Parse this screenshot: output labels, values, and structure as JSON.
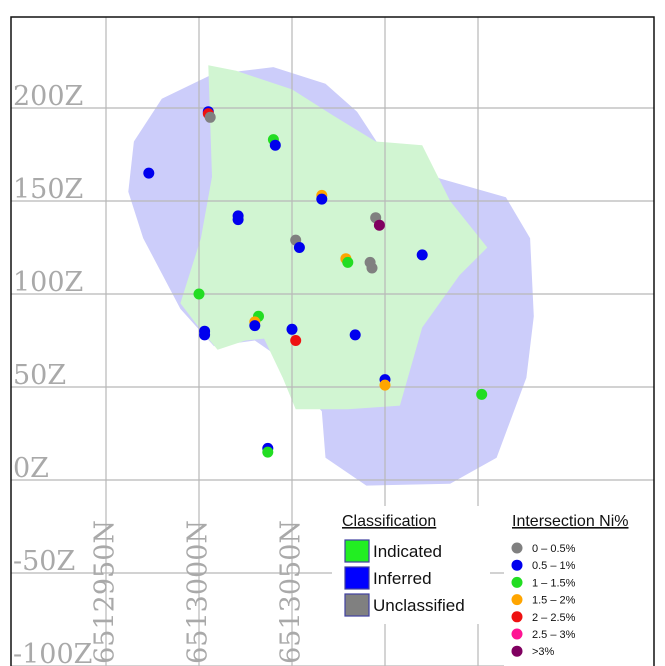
{
  "chart_data": {
    "type": "scatter",
    "title": "",
    "xlabel": "",
    "ylabel": "",
    "xlim": [
      6512920,
      6513185
    ],
    "ylim": [
      -105,
      245
    ],
    "y_ticks": [
      {
        "value": 200,
        "label": "200Z"
      },
      {
        "value": 150,
        "label": "150Z"
      },
      {
        "value": 100,
        "label": "100Z"
      },
      {
        "value": 50,
        "label": "50Z"
      },
      {
        "value": 0,
        "label": "0Z"
      },
      {
        "value": -50,
        "label": "-50Z"
      },
      {
        "value": -100,
        "label": "-100Z"
      }
    ],
    "x_ticks": [
      {
        "value": 6512950,
        "label": "6512950N"
      },
      {
        "value": 6513000,
        "label": "6513000N"
      },
      {
        "value": 6513050,
        "label": "6513050N"
      },
      {
        "value": 6513100,
        "label": ""
      },
      {
        "value": 6513150,
        "label": ""
      }
    ],
    "grid": true,
    "classification_legend": {
      "title": "Classification",
      "placement": "bottom-center",
      "items": [
        {
          "label": "Indicated",
          "color": "#22ee22"
        },
        {
          "label": "Inferred",
          "color": "#0000ff"
        },
        {
          "label": "Unclassified",
          "color": "#808080"
        }
      ]
    },
    "grade_legend": {
      "title": "Intersection Ni%",
      "placement": "bottom-right",
      "items": [
        {
          "label": "0 – 0.5%",
          "color": "#808080"
        },
        {
          "label": "0.5 – 1%",
          "color": "#0000ee"
        },
        {
          "label": "1 – 1.5%",
          "color": "#22dd22"
        },
        {
          "label": "1.5 – 2%",
          "color": "#ffa500"
        },
        {
          "label": "2 – 2.5%",
          "color": "#ee1111"
        },
        {
          "label": "2.5 – 3%",
          "color": "#ff1493"
        },
        {
          "label": ">3%",
          "color": "#800060"
        }
      ]
    },
    "regions": [
      {
        "name": "Inferred",
        "color": "#cccdfa",
        "points": [
          [
            6513068,
            213
          ],
          [
            6513040,
            222
          ],
          [
            6513007,
            218
          ],
          [
            6512980,
            205
          ],
          [
            6512965,
            182
          ],
          [
            6512962,
            155
          ],
          [
            6512970,
            130
          ],
          [
            6512990,
            92
          ],
          [
            6513008,
            72
          ],
          [
            6513030,
            75
          ],
          [
            6513043,
            66
          ],
          [
            6513050,
            55
          ],
          [
            6513066,
            37
          ],
          [
            6513068,
            12
          ],
          [
            6513090,
            -3
          ],
          [
            6513135,
            -2
          ],
          [
            6513160,
            12
          ],
          [
            6513176,
            55
          ],
          [
            6513180,
            88
          ],
          [
            6513178,
            130
          ],
          [
            6513165,
            152
          ],
          [
            6513130,
            162
          ],
          [
            6513102,
            172
          ],
          [
            6513085,
            198
          ]
        ]
      },
      {
        "name": "Indicated",
        "color": "#d1f5d2",
        "points": [
          [
            6513005,
            223
          ],
          [
            6513020,
            220
          ],
          [
            6513050,
            210
          ],
          [
            6513072,
            196
          ],
          [
            6513095,
            182
          ],
          [
            6513120,
            180
          ],
          [
            6513135,
            150
          ],
          [
            6513155,
            125
          ],
          [
            6513140,
            110
          ],
          [
            6513120,
            82
          ],
          [
            6513108,
            40
          ],
          [
            6513080,
            38
          ],
          [
            6513052,
            38
          ],
          [
            6513045,
            55
          ],
          [
            6513035,
            76
          ],
          [
            6513025,
            75
          ],
          [
            6513010,
            70
          ],
          [
            6513000,
            82
          ],
          [
            6512990,
            95
          ],
          [
            6513001,
            130
          ],
          [
            6513007,
            163
          ]
        ]
      },
      {
        "name": "Unclassified",
        "color": "#ffffff",
        "points": []
      }
    ],
    "points": [
      {
        "x": 6513005,
        "y": 198,
        "grade": "0.5 – 1%"
      },
      {
        "x": 6513005,
        "y": 197,
        "grade": "2 – 2.5%"
      },
      {
        "x": 6513006,
        "y": 195,
        "grade": "0 – 0.5%"
      },
      {
        "x": 6513040,
        "y": 183,
        "grade": "1 – 1.5%"
      },
      {
        "x": 6513041,
        "y": 180,
        "grade": "0.5 – 1%"
      },
      {
        "x": 6512973,
        "y": 165,
        "grade": "0.5 – 1%"
      },
      {
        "x": 6513021,
        "y": 142,
        "grade": "0.5 – 1%"
      },
      {
        "x": 6513021,
        "y": 140,
        "grade": "0.5 – 1%"
      },
      {
        "x": 6513066,
        "y": 153,
        "grade": "1.5 – 2%"
      },
      {
        "x": 6513066,
        "y": 151,
        "grade": "0.5 – 1%"
      },
      {
        "x": 6513095,
        "y": 141,
        "grade": "0 – 0.5%"
      },
      {
        "x": 6513097,
        "y": 137,
        "grade": ">3%"
      },
      {
        "x": 6513052,
        "y": 129,
        "grade": "0 – 0.5%"
      },
      {
        "x": 6513054,
        "y": 125,
        "grade": "0.5 – 1%"
      },
      {
        "x": 6513120,
        "y": 121,
        "grade": "0.5 – 1%"
      },
      {
        "x": 6513079,
        "y": 119,
        "grade": "1.5 – 2%"
      },
      {
        "x": 6513080,
        "y": 117,
        "grade": "1 – 1.5%"
      },
      {
        "x": 6513092,
        "y": 117,
        "grade": "0 – 0.5%"
      },
      {
        "x": 6513093,
        "y": 114,
        "grade": "0 – 0.5%"
      },
      {
        "x": 6513000,
        "y": 100,
        "grade": "1 – 1.5%"
      },
      {
        "x": 6513032,
        "y": 88,
        "grade": "1 – 1.5%"
      },
      {
        "x": 6513030,
        "y": 85,
        "grade": "1.5 – 2%"
      },
      {
        "x": 6513030,
        "y": 83,
        "grade": "0.5 – 1%"
      },
      {
        "x": 6513003,
        "y": 80,
        "grade": "0.5 – 1%"
      },
      {
        "x": 6513003,
        "y": 78,
        "grade": "0.5 – 1%"
      },
      {
        "x": 6513050,
        "y": 81,
        "grade": "0.5 – 1%"
      },
      {
        "x": 6513052,
        "y": 75,
        "grade": "2 – 2.5%"
      },
      {
        "x": 6513084,
        "y": 78,
        "grade": "0.5 – 1%"
      },
      {
        "x": 6513100,
        "y": 54,
        "grade": "0.5 – 1%"
      },
      {
        "x": 6513100,
        "y": 51,
        "grade": "1.5 – 2%"
      },
      {
        "x": 6513152,
        "y": 46,
        "grade": "1 – 1.5%"
      },
      {
        "x": 6513037,
        "y": 17,
        "grade": "0.5 – 1%"
      },
      {
        "x": 6513037,
        "y": 15,
        "grade": "1 – 1.5%"
      }
    ]
  }
}
